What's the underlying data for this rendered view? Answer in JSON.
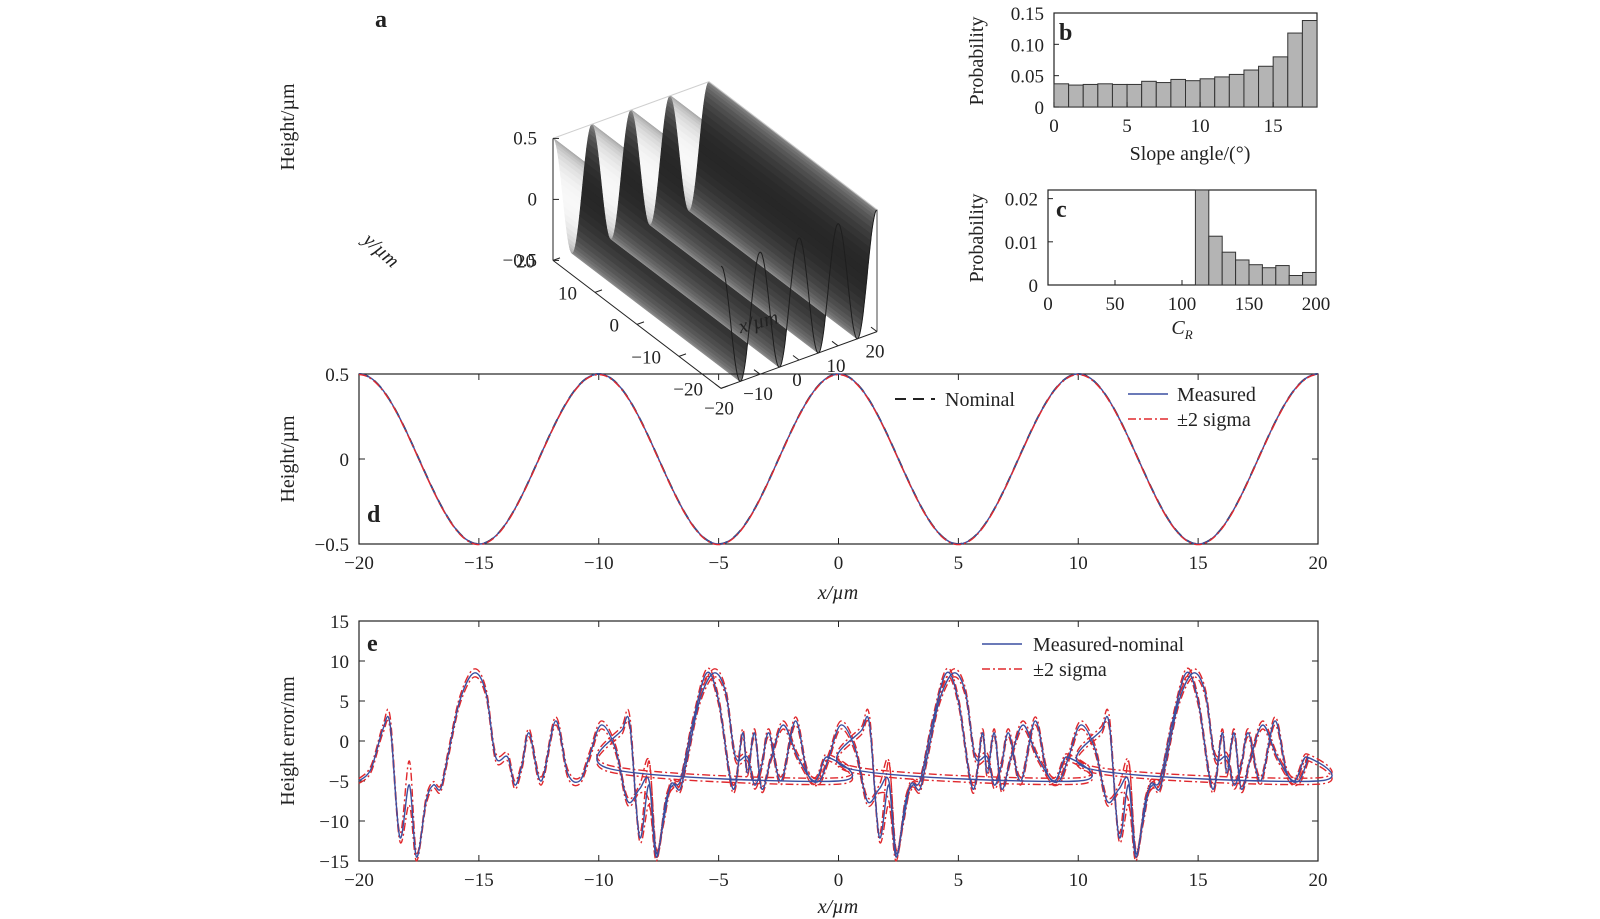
{
  "colors": {
    "nominal": "#222222",
    "measured": "#3a4fa0",
    "sigma": "#e0282d",
    "bar_fill": "#b4b4b4"
  },
  "chart_data": [
    {
      "panel": "a",
      "type": "surface",
      "zlabel": "Height/µm",
      "ylabel": "y/µm",
      "xlabel": "x/µm",
      "z_ticks": [
        "0.5",
        "0",
        "−0.5"
      ],
      "y_ticks": [
        "20",
        "10",
        "0",
        "−10",
        "−20"
      ],
      "x_ticks": [
        "−20",
        "−10",
        "0",
        "10",
        "20"
      ],
      "surface": "z = 0.5·cos(2π·x/10)",
      "xlim": [
        -20,
        20
      ],
      "ylim": [
        -20,
        20
      ],
      "zlim": [
        -0.5,
        0.5
      ]
    },
    {
      "panel": "b",
      "type": "bar",
      "xlabel": "Slope angle/(°)",
      "ylabel": "Probability",
      "xlim": [
        0,
        18
      ],
      "ylim": [
        0,
        0.15
      ],
      "x_ticks": [
        "0",
        "5",
        "10",
        "15"
      ],
      "y_ticks": [
        "0",
        "0.05",
        "0.10",
        "0.15"
      ],
      "bin_width": 1,
      "bin_starts": [
        0,
        1,
        2,
        3,
        4,
        5,
        6,
        7,
        8,
        9,
        10,
        11,
        12,
        13,
        14,
        15,
        16,
        17
      ],
      "values": [
        0.037,
        0.035,
        0.036,
        0.037,
        0.036,
        0.036,
        0.041,
        0.039,
        0.044,
        0.042,
        0.045,
        0.048,
        0.052,
        0.059,
        0.065,
        0.08,
        0.118,
        0.138
      ]
    },
    {
      "panel": "c",
      "type": "bar",
      "xlabel": "C",
      "xlabel_sub": "R",
      "ylabel": "Probability",
      "xlim": [
        0,
        200
      ],
      "ylim": [
        0,
        0.022
      ],
      "x_ticks": [
        "0",
        "50",
        "100",
        "150",
        "200"
      ],
      "y_ticks": [
        "0",
        "0.01",
        "0.02"
      ],
      "bin_width": 10,
      "bin_starts": [
        110,
        120,
        130,
        140,
        150,
        160,
        170,
        180,
        190
      ],
      "values": [
        0.022,
        0.0113,
        0.0076,
        0.0058,
        0.0047,
        0.004,
        0.0045,
        0.0022,
        0.0029
      ]
    },
    {
      "panel": "d",
      "type": "line",
      "xlabel": "x/µm",
      "ylabel": "Height/µm",
      "xlim": [
        -20,
        20
      ],
      "ylim": [
        -0.5,
        0.5
      ],
      "x_ticks": [
        "−20",
        "−15",
        "−10",
        "−5",
        "0",
        "5",
        "10",
        "15",
        "20"
      ],
      "y_ticks": [
        "0.5",
        "0",
        "−0.5"
      ],
      "series": [
        {
          "name": "Nominal",
          "style": "dashed",
          "function": "0.5*cos(2*pi*x/10)"
        },
        {
          "name": "Measured",
          "style": "solid",
          "function": "0.5*cos(2*pi*x/10)"
        },
        {
          "name": "±2 sigma",
          "style": "dash-dot",
          "function": "0.5*cos(2*pi*x/10)"
        }
      ]
    },
    {
      "panel": "e",
      "type": "line",
      "xlabel": "x/µm",
      "ylabel": "Height error/nm",
      "xlim": [
        -20,
        20
      ],
      "ylim": [
        -15,
        15
      ],
      "x_ticks": [
        "−20",
        "−15",
        "−10",
        "−5",
        "0",
        "5",
        "10",
        "15",
        "20"
      ],
      "y_ticks": [
        "15",
        "10",
        "5",
        "0",
        "−5",
        "−10",
        "−15"
      ],
      "x": [
        -20,
        -19.5,
        -19,
        -18.7,
        -18.3,
        -17.9,
        -17.6,
        -17.2,
        -16.9,
        -16.6,
        -16.3,
        -15.8,
        -15.2,
        -14.7,
        -14.3,
        -13.8,
        -13.5,
        -13.2,
        -12.9,
        -12.4,
        -11.8,
        -11.3,
        -10.8,
        -10.4,
        -9.9,
        -9.3,
        -8.8,
        -8.3,
        -7.9,
        -7.6,
        -7.3,
        -7,
        -6.6,
        -6.1,
        -5.5,
        -5,
        -4.4,
        -4,
        -3.8,
        -3.5,
        -3.2,
        -2.8,
        -2.3,
        -1.7,
        -1,
        -0.5,
        0
      ],
      "measured": [
        -5,
        -3.5,
        1.5,
        2,
        -12,
        -5.5,
        -14.5,
        -7.5,
        -5.5,
        -6,
        -2,
        5,
        8.5,
        6,
        -2,
        -2,
        -5.5,
        -3,
        1,
        -5,
        2.5,
        -4,
        -5,
        -2,
        2,
        -1,
        -7.5,
        -6,
        -5,
        -14,
        -10,
        -5.5,
        -5,
        2,
        8.5,
        5,
        -6,
        1,
        -4,
        1,
        -6,
        -2,
        2,
        -2,
        -5,
        -2,
        -5
      ],
      "sigma_upper": [
        -4.7,
        -3.1,
        2,
        3,
        -11.5,
        -2.5,
        -14,
        -7,
        -5.1,
        -5.6,
        -1.5,
        5.5,
        9,
        6.5,
        -1.5,
        -1.5,
        -5,
        -2.5,
        1.5,
        -4.5,
        3,
        -3.5,
        -4.6,
        -1.5,
        2.5,
        -0.5,
        -7,
        -5.5,
        -2.5,
        -13.5,
        -9.5,
        -5,
        -4.6,
        2.5,
        9,
        5.5,
        -5.5,
        1.5,
        -3.6,
        1.5,
        -5.6,
        -1.6,
        2.5,
        -1.6,
        -4.6,
        -1.6,
        -4.6
      ],
      "sigma_lower": [
        -5.3,
        -3.9,
        1,
        1.5,
        -12.5,
        -8,
        -15,
        -8,
        -5.9,
        -6.4,
        -2.5,
        4.5,
        8,
        5.5,
        -2.5,
        -2.5,
        -6,
        -3.5,
        0.5,
        -5.5,
        2,
        -4.5,
        -5.4,
        -2.5,
        1.5,
        -1.5,
        -8,
        -6.5,
        -7.5,
        -14.5,
        -10.5,
        -6,
        -5.4,
        1.5,
        8,
        4.5,
        -6.5,
        0.5,
        -4.4,
        0.5,
        -6.4,
        -2.4,
        1.5,
        -2.4,
        -5.4,
        -2.4,
        -5.4
      ],
      "symmetry": "pattern repeats with period 10 µm",
      "series": [
        {
          "name": "Measured-nominal",
          "style": "solid"
        },
        {
          "name": "±2 sigma",
          "style": "dash-dot"
        }
      ]
    }
  ]
}
